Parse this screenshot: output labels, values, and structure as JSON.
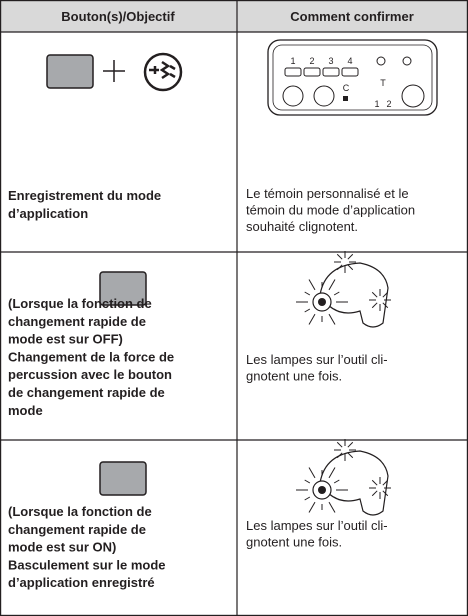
{
  "header": {
    "col1": "Bouton(s)/Objectif",
    "col2": "Comment confirmer"
  },
  "panel": {
    "labels": [
      "1",
      "2",
      "3",
      "4",
      "C",
      "T",
      "1",
      "2"
    ]
  },
  "rows": [
    {
      "action": [
        "Enregistrement du mode",
        "d’application"
      ],
      "confirm": [
        "Le témoin personnalisé et le",
        "témoin du mode d’application",
        "souhaité clignotent."
      ]
    },
    {
      "action": [
        "(Lorsque la fonction de",
        "changement rapide de",
        "mode est sur OFF)",
        "Changement de la force de",
        "percussion avec le bouton",
        "de changement rapide de",
        "mode"
      ],
      "confirm": [
        "Les lampes sur l’outil cli-",
        "gnotent une fois."
      ]
    },
    {
      "action": [
        "(Lorsque la fonction de",
        "changement rapide de",
        "mode est sur ON)",
        "Basculement sur le mode",
        "d’application enregistré"
      ],
      "confirm": [
        "Les lampes sur l’outil cli-",
        "gnotent une fois."
      ]
    }
  ]
}
